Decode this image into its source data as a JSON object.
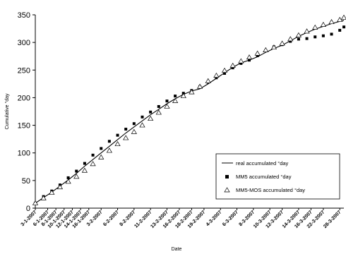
{
  "chart_data": {
    "type": "line",
    "title": "",
    "xlabel": "Date",
    "ylabel": "Cumulative °day",
    "ylim": [
      0,
      350
    ],
    "yticks": [
      0,
      50,
      100,
      150,
      200,
      250,
      300,
      350
    ],
    "xlim": [
      0,
      75
    ],
    "grid": false,
    "legend_position": "bottom-right",
    "x_ticks": [
      {
        "index": 0,
        "label": "3-1-2007"
      },
      {
        "index": 3,
        "label": "6-1-2007"
      },
      {
        "index": 5,
        "label": "8-1-2007"
      },
      {
        "index": 7,
        "label": "10-1-2007"
      },
      {
        "index": 9,
        "label": "12-1-2007"
      },
      {
        "index": 11,
        "label": "14-1-2007"
      },
      {
        "index": 13,
        "label": "16-1-2007"
      },
      {
        "index": 16,
        "label": "3-2-2007"
      },
      {
        "index": 20,
        "label": "6-2-2007"
      },
      {
        "index": 24,
        "label": "8-2-2007"
      },
      {
        "index": 28,
        "label": "11-2-2007"
      },
      {
        "index": 32,
        "label": "13-2-2007"
      },
      {
        "index": 35,
        "label": "16-2-2007"
      },
      {
        "index": 38,
        "label": "18-2-2007"
      },
      {
        "index": 41,
        "label": "19-2-2007"
      },
      {
        "index": 45,
        "label": "4-3-2007"
      },
      {
        "index": 49,
        "label": "6-3-2007"
      },
      {
        "index": 53,
        "label": "8-3-2007"
      },
      {
        "index": 57,
        "label": "10-3-2007"
      },
      {
        "index": 60,
        "label": "12-3-2007"
      },
      {
        "index": 64,
        "label": "14-3-2007"
      },
      {
        "index": 67,
        "label": "16-3-2007"
      },
      {
        "index": 70,
        "label": "22-3-2007"
      },
      {
        "index": 74,
        "label": "28-3-2007"
      }
    ],
    "series": [
      {
        "name": "real accumulated °day",
        "style": "line",
        "color": "#000000",
        "x": [
          0,
          2,
          4,
          6,
          8,
          10,
          12,
          14,
          16,
          18,
          20,
          22,
          24,
          26,
          28,
          30,
          32,
          34,
          36,
          38,
          40,
          42,
          44,
          46,
          48,
          50,
          52,
          54,
          56,
          58,
          60,
          62,
          64,
          66,
          68,
          70,
          72,
          74,
          75
        ],
        "y": [
          9,
          19,
          29,
          40,
          51,
          63,
          76,
          88,
          100,
          112,
          124,
          136,
          147,
          158,
          169,
          179,
          189,
          198,
          206,
          212,
          216,
          225,
          235,
          245,
          255,
          263,
          268,
          274,
          282,
          289,
          295,
          303,
          311,
          318,
          324,
          329,
          334,
          338,
          340
        ]
      },
      {
        "name": "MM5 accumulated °day",
        "style": "square-markers",
        "color": "#000000",
        "x": [
          0,
          2,
          4,
          6,
          8,
          10,
          12,
          14,
          16,
          18,
          20,
          22,
          24,
          26,
          28,
          30,
          32,
          34,
          36,
          38,
          40,
          42,
          44,
          46,
          48,
          50,
          52,
          54,
          56,
          58,
          60,
          62,
          64,
          66,
          68,
          70,
          72,
          74,
          75
        ],
        "y": [
          9,
          21,
          31,
          42,
          55,
          67,
          81,
          96,
          108,
          121,
          132,
          143,
          153,
          165,
          174,
          184,
          194,
          203,
          208,
          213,
          220,
          228,
          236,
          244,
          254,
          262,
          268,
          276,
          285,
          292,
          296,
          302,
          306,
          307,
          310,
          312,
          315,
          322,
          328
        ]
      },
      {
        "name": "MM5-MOS accumulated °day",
        "style": "triangle-markers",
        "color": "#000000",
        "x": [
          0,
          2,
          4,
          6,
          8,
          10,
          12,
          14,
          16,
          18,
          20,
          22,
          24,
          26,
          28,
          30,
          32,
          34,
          36,
          38,
          40,
          42,
          44,
          46,
          48,
          50,
          52,
          54,
          56,
          58,
          60,
          62,
          64,
          66,
          68,
          70,
          72,
          74,
          75
        ],
        "y": [
          9,
          18,
          28,
          38,
          48,
          57,
          68,
          80,
          92,
          104,
          116,
          127,
          138,
          150,
          162,
          173,
          184,
          194,
          203,
          210,
          220,
          230,
          240,
          249,
          258,
          266,
          273,
          280,
          286,
          291,
          298,
          306,
          313,
          320,
          327,
          332,
          337,
          341,
          345
        ]
      }
    ]
  }
}
